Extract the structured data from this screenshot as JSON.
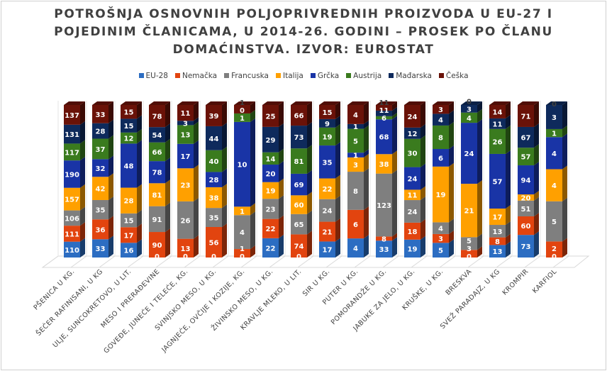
{
  "chart_data": {
    "type": "bar",
    "stacked": "percent",
    "three_d": true,
    "title_lines": [
      "POTROŠNJA OSNOVNIH POLJOPRIVREDNIH PROIZVODA U EU-27 I",
      "POJEDINIM ČLANICAMA, U 2014-26. GODINI – PROSEK PO ČLANU",
      "DOMAĆINSTVA. IZVOR: EUROSTAT"
    ],
    "legend_position": "top",
    "categories": [
      "PŠENICA U KG.",
      "ŠEĆER RAFINISANI, U KG",
      "ULJE, SUNCOKRETOVO, U LIT.",
      "MESO I PRERAĐEVINE",
      "GOVEĐE, JUNEĆE I TELEĆE, KG.",
      "SVINJSKO MESO, U KG.",
      "JAGNJEĆE, OVČIJE I KOZIJE, KG.",
      "ŽIVINSKO MESO, U KG.",
      "KRAVLJE MLEKO, U LIT.",
      "SIR U KG.",
      "PUTER U KG.",
      "POMORANDŽE U KG.",
      "JABUKE ZA JELO, U KG.",
      "KRUŠKE, U KG.",
      "BRESKVA",
      "SVEŽ PARADAJZ, U KG",
      "KROMPIR",
      "KARFIOL"
    ],
    "series": [
      {
        "name": "EU-28",
        "color": "#2c6dc2",
        "values": [
          110,
          33,
          16,
          0,
          0,
          0,
          0,
          22,
          0,
          17,
          4,
          33,
          19,
          5,
          0,
          13,
          73,
          0
        ]
      },
      {
        "name": "Nemačka",
        "color": "#e2440f",
        "values": [
          111,
          36,
          17,
          90,
          13,
          56,
          1,
          22,
          74,
          21,
          6,
          8,
          18,
          3,
          3,
          8,
          60,
          2
        ]
      },
      {
        "name": "Francuska",
        "color": "#7f7f7f",
        "values": [
          106,
          35,
          15,
          91,
          26,
          35,
          4,
          23,
          65,
          24,
          8,
          123,
          24,
          4,
          5,
          13,
          51,
          5
        ]
      },
      {
        "name": "Italija",
        "color": "#ffa000",
        "values": [
          157,
          42,
          28,
          81,
          23,
          38,
          1,
          19,
          60,
          22,
          3,
          38,
          11,
          19,
          21,
          17,
          20,
          4
        ]
      },
      {
        "name": "Grčka",
        "color": "#1934a6",
        "values": [
          190,
          32,
          48,
          78,
          17,
          28,
          10,
          20,
          69,
          35,
          1,
          68,
          24,
          6,
          24,
          57,
          94,
          4
        ]
      },
      {
        "name": "Austrija",
        "color": "#3a7b1e",
        "values": [
          117,
          37,
          12,
          66,
          13,
          40,
          1,
          14,
          81,
          19,
          5,
          6,
          30,
          8,
          4,
          26,
          57,
          1
        ]
      },
      {
        "name": "Mađarska",
        "color": "#0e2a5c",
        "values": [
          131,
          28,
          15,
          54,
          3,
          44,
          0,
          29,
          73,
          9,
          1,
          11,
          12,
          4,
          3,
          11,
          67,
          3
        ]
      },
      {
        "name": "Češka",
        "color": "#6a1208",
        "values": [
          137,
          33,
          15,
          78,
          11,
          39,
          1,
          25,
          66,
          15,
          4,
          11,
          24,
          3,
          0,
          14,
          71,
          0
        ]
      }
    ],
    "data_labels": true,
    "grid": true
  }
}
